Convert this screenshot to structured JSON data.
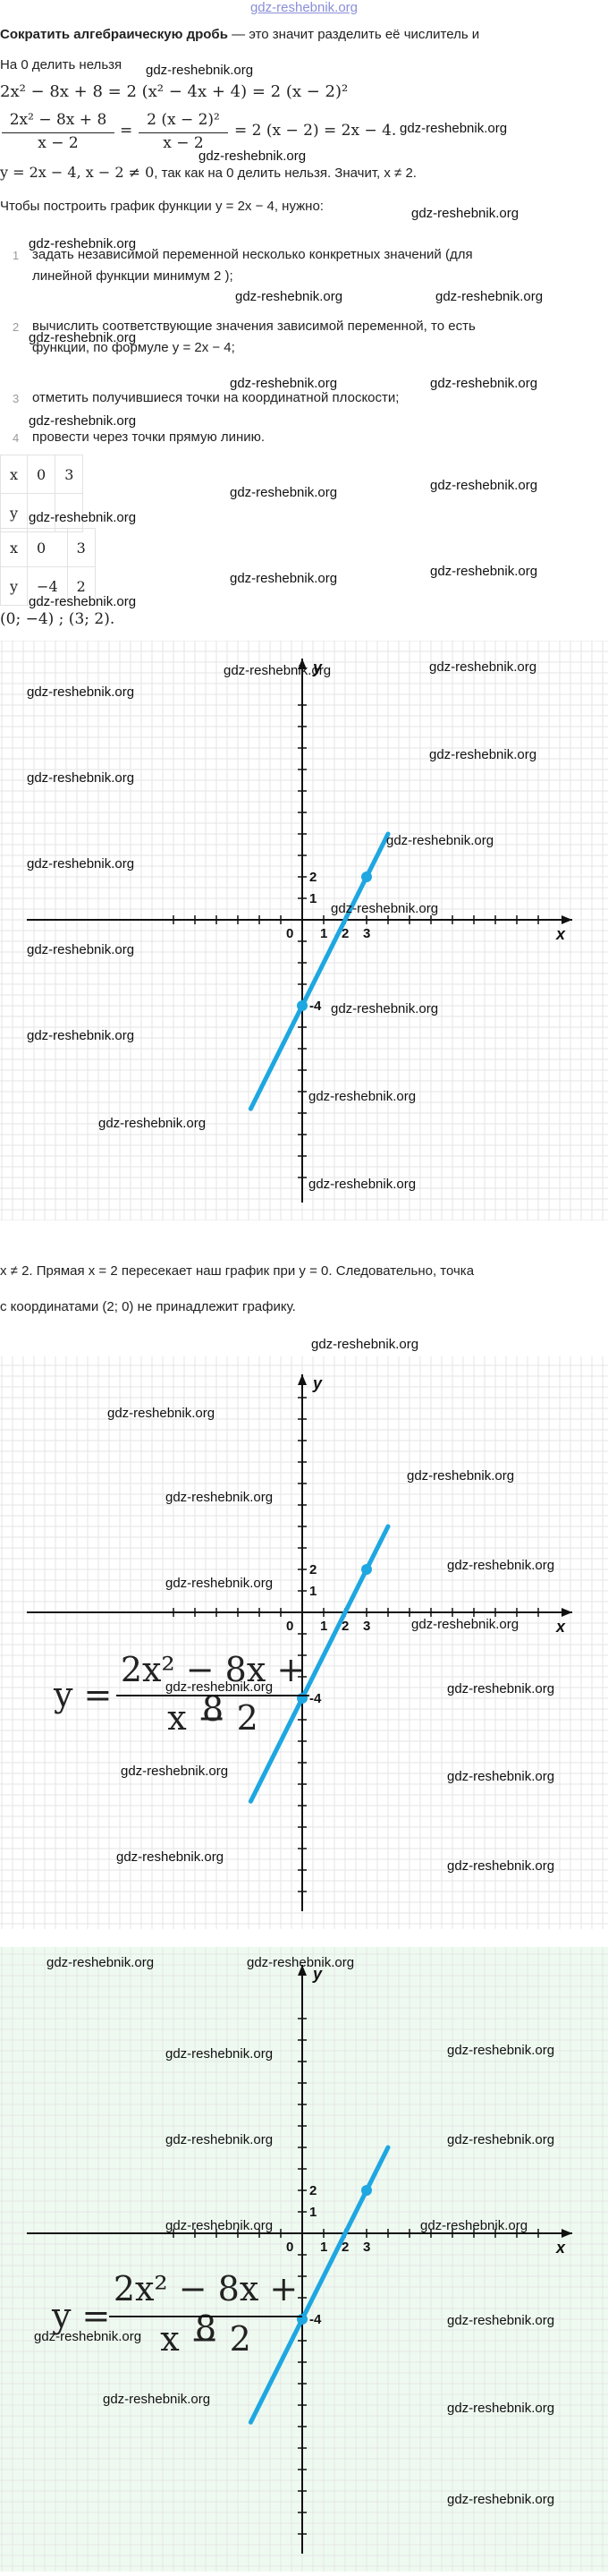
{
  "header": {
    "site": "gdz-reshebnik.org"
  },
  "intro": {
    "title_bold": "Сократить алгебраическую дробь",
    "title_rest": " — это значит разделить её числитель и",
    "line2": "На 0 делить нельзя",
    "eq1": "2x² − 8x + 8 = 2 (x² − 4x + 4) = 2 (x − 2)²",
    "eq2_num": "2x² − 8x + 8",
    "eq2_den": "x − 2",
    "eq2_mid_num": "2 (x − 2)²",
    "eq2_mid_den": "x − 2",
    "eq2_tail": "= 2 (x − 2) = 2x − 4.",
    "line5_math": "y = 2x − 4,  x − 2 ≠ 0",
    "line5_text": ", так как на 0 делить нельзя. Значит, x ≠ 2.",
    "line6": "Чтобы построить график функции y = 2x − 4, нужно:"
  },
  "steps": [
    {
      "num": "1",
      "lines": [
        "задать независимой переменной несколько конкретных значений (для",
        "линейной функции минимум 2 );"
      ]
    },
    {
      "num": "2",
      "lines": [
        "вычислить соответствующие значения зависимой переменной, то есть",
        "функции, по формуле y = 2x − 4;"
      ]
    },
    {
      "num": "3",
      "lines": [
        "отметить получившиеся точки на координатной плоскости;"
      ]
    },
    {
      "num": "4",
      "lines": [
        "провести через точки прямую линию."
      ]
    }
  ],
  "table1": {
    "rows": [
      [
        "x",
        "0",
        "3"
      ],
      [
        "y",
        "",
        ""
      ]
    ]
  },
  "table2": {
    "rows": [
      [
        "x",
        "0",
        "3"
      ],
      [
        "y",
        "−4",
        "2"
      ]
    ]
  },
  "points_text": "(0; −4) ;  (3; 2).",
  "note": {
    "line1": "x ≠ 2. Прямая x = 2 пересекает наш график при y = 0. Следовательно, точка",
    "line2": "с координатами (2; 0) не принадлежит графику."
  },
  "graph": {
    "x_axis_label": "x",
    "y_axis_label": "y",
    "origin_label": "0",
    "tick_x": [
      "1",
      "2",
      "3"
    ],
    "tick_y_pos": [
      "2",
      "1"
    ],
    "tick_y_neg": "-4",
    "line_color": "#1ea7e1",
    "points": [
      {
        "x": 0,
        "y": -4
      },
      {
        "x": 3,
        "y": 2
      }
    ],
    "formula_lhs": "y =",
    "formula_num": "2x² − 8x + 8",
    "formula_den": "x − 2"
  },
  "watermark": "gdz-reshebnik.org"
}
